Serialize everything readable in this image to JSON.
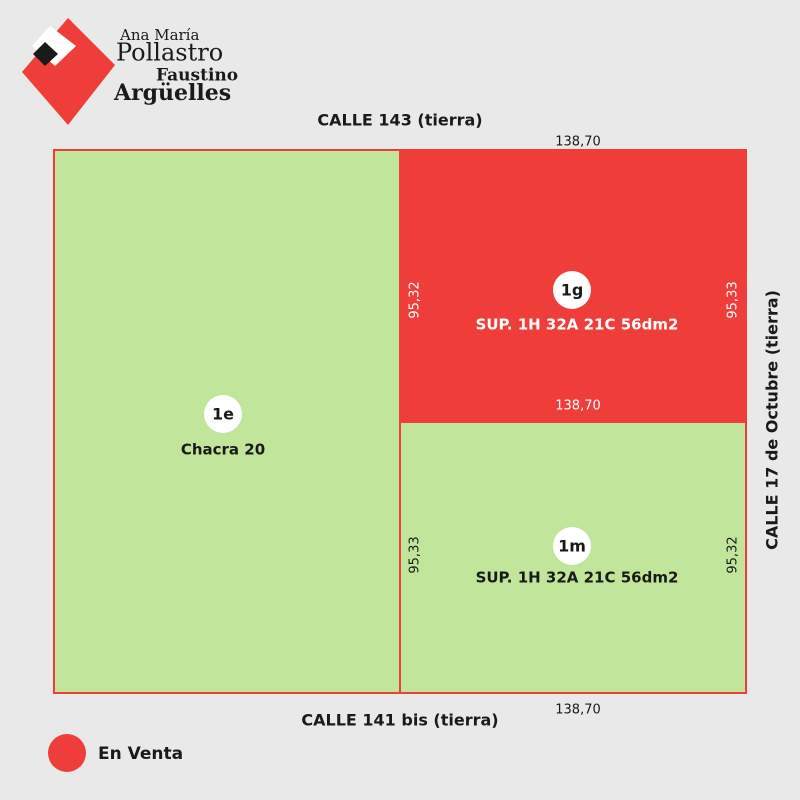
{
  "logo": {
    "line1": "Ana María",
    "line2": "Pollastro",
    "line3": "Faustino",
    "line4": "Argüelles"
  },
  "streets": {
    "top": "CALLE 143 (tierra)",
    "bottom": "CALLE 141 bis (tierra)",
    "right": "CALLE 17 de Octubre (tierra)"
  },
  "lots": [
    {
      "id": "1e",
      "label": "Chacra 20"
    },
    {
      "id": "1g",
      "label": "SUP. 1H 32A 21C 56dm2",
      "left_side": "95,32",
      "right_side": "95,33",
      "bottom_side": "138,70"
    },
    {
      "id": "1m",
      "label": "SUP. 1H 32A 21C 56dm2",
      "left_side": "95,33",
      "right_side": "95,32"
    }
  ],
  "measures": {
    "top": "138,70",
    "bottom": "138,70"
  },
  "legend": {
    "label": "En Venta"
  }
}
